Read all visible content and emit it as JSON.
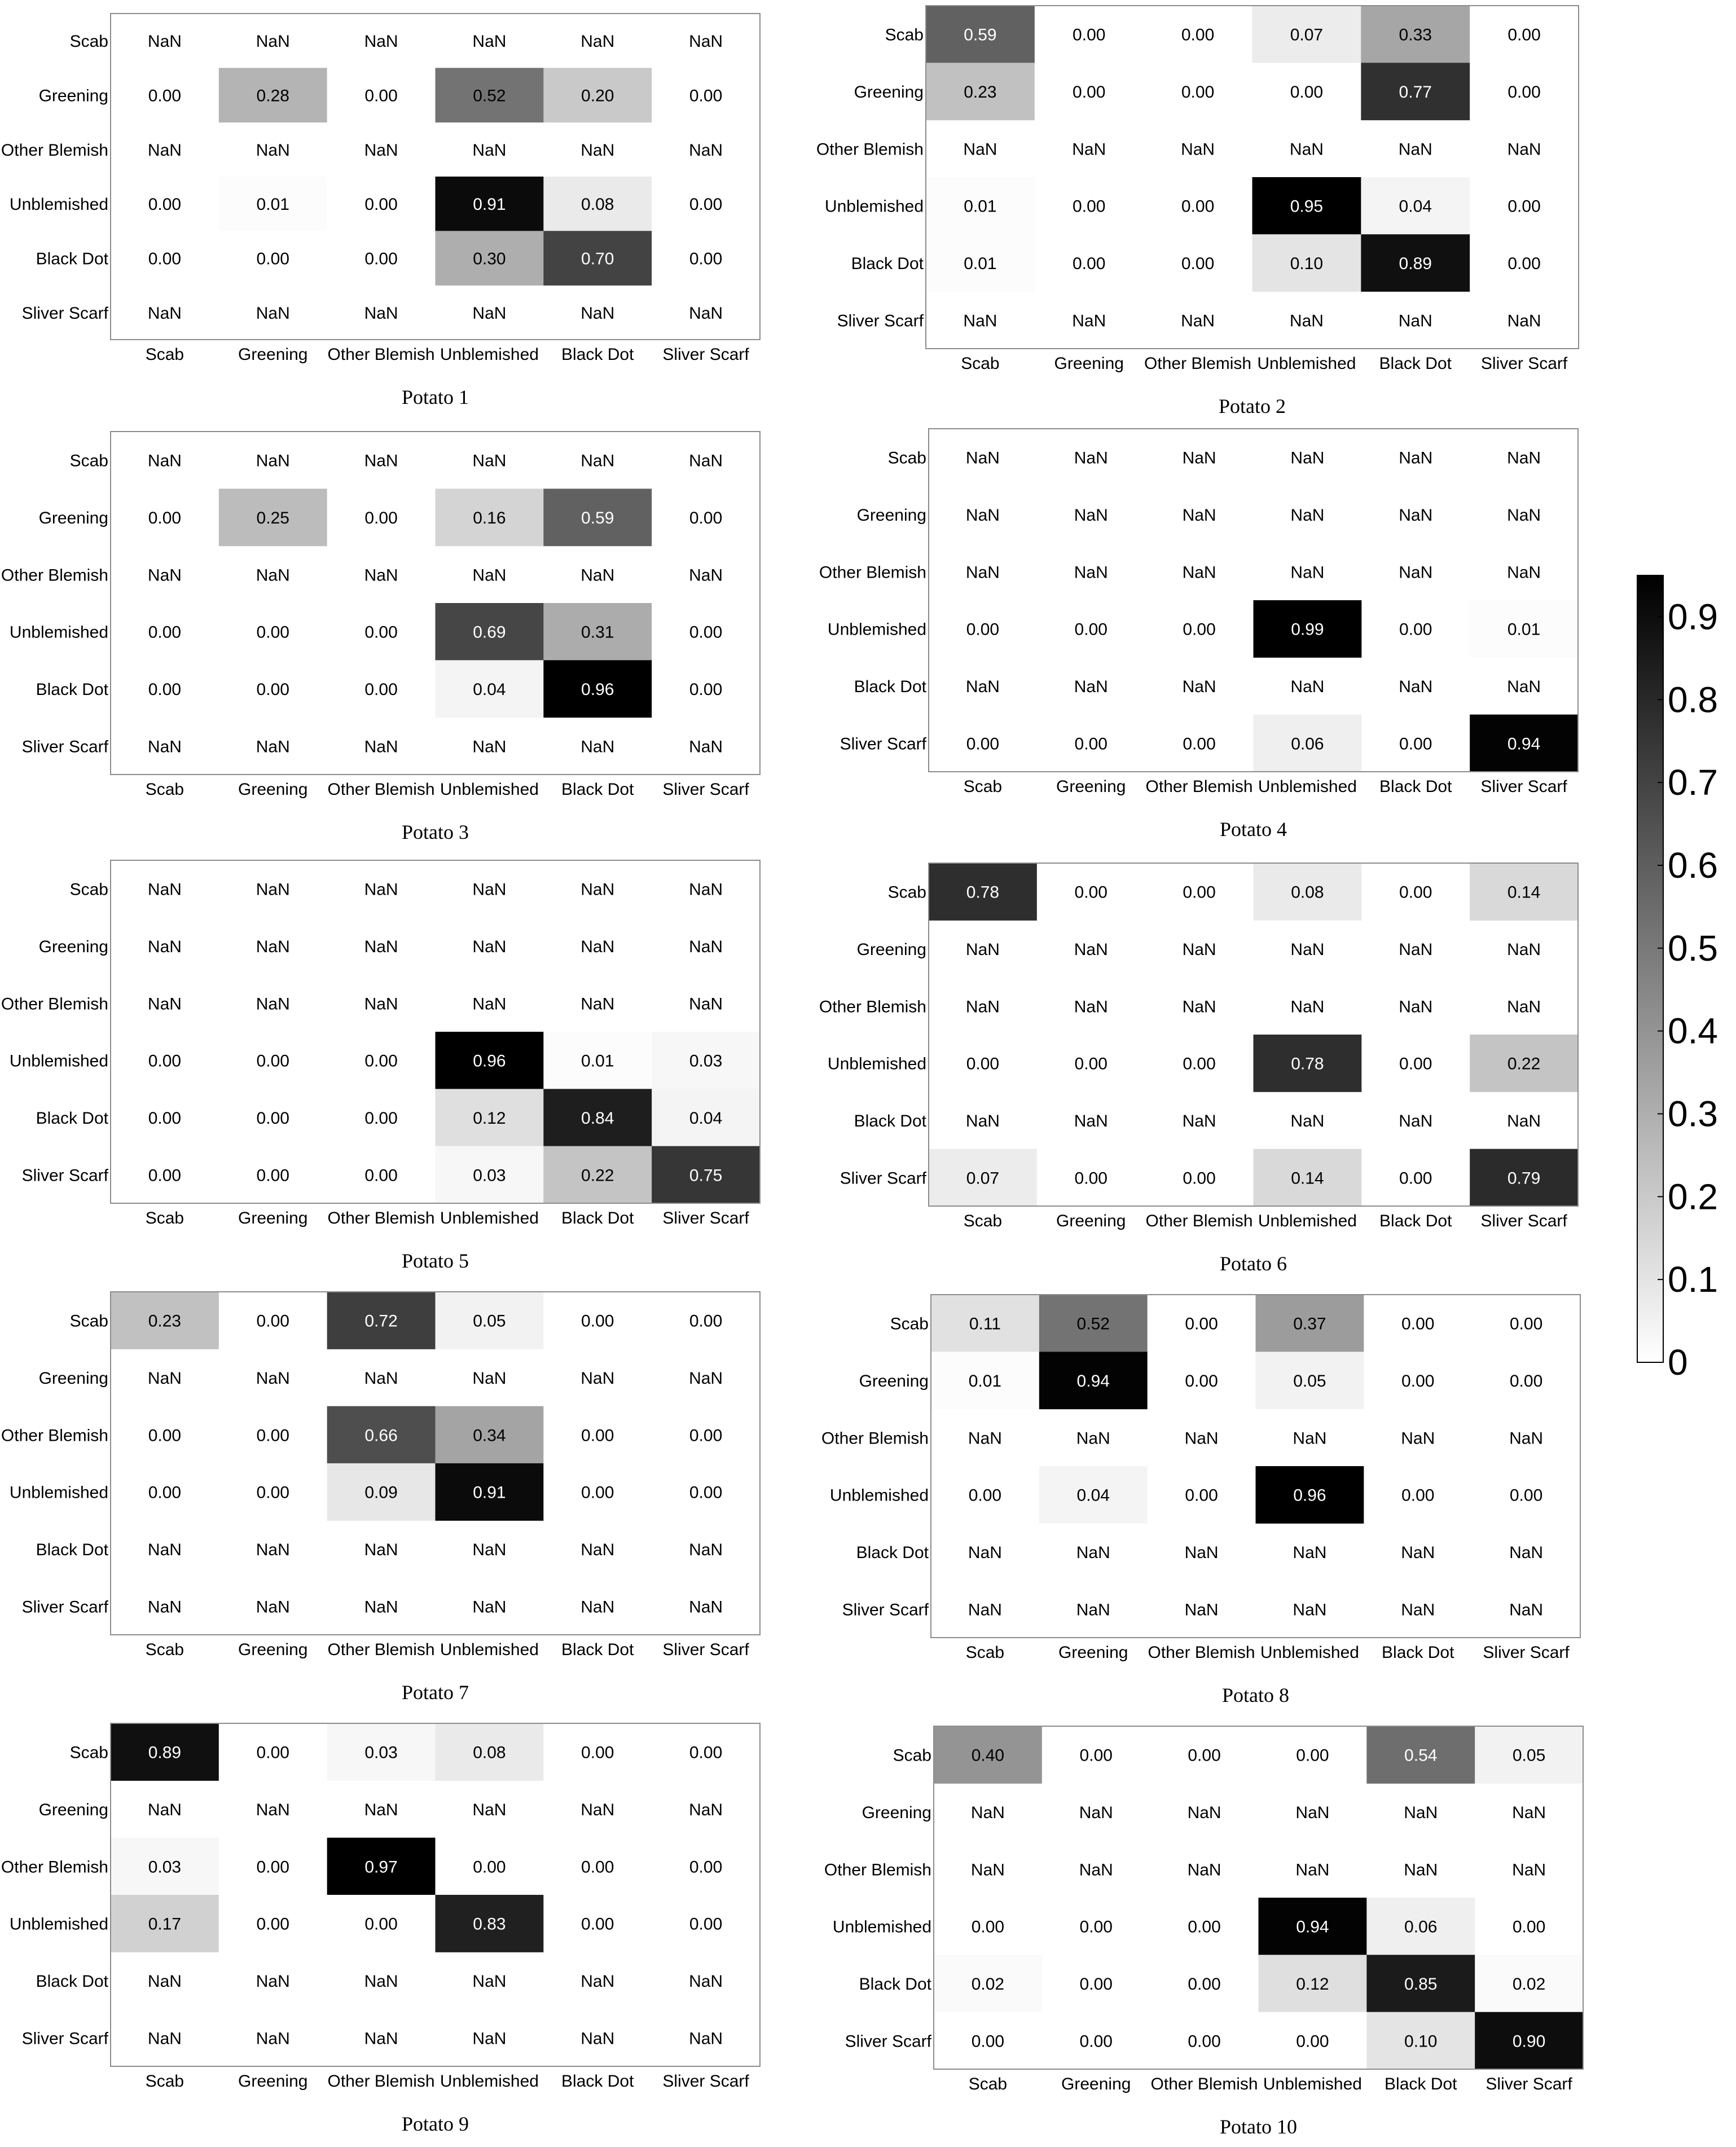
{
  "categories": [
    "Scab",
    "Greening",
    "Other Blemish",
    "Unblemished",
    "Black Dot",
    "Sliver Scarf"
  ],
  "chart_data": [
    {
      "type": "heatmap",
      "title": "Potato 1",
      "rows": [
        "Scab",
        "Greening",
        "Other Blemish",
        "Unblemished",
        "Black Dot",
        "Sliver Scarf"
      ],
      "columns": [
        "Scab",
        "Greening",
        "Other Blemish",
        "Unblemished",
        "Black Dot",
        "Sliver Scarf"
      ],
      "values": [
        [
          null,
          null,
          null,
          null,
          null,
          null
        ],
        [
          0.0,
          0.28,
          0.0,
          0.52,
          0.2,
          0.0
        ],
        [
          null,
          null,
          null,
          null,
          null,
          null
        ],
        [
          0.0,
          0.01,
          0.0,
          0.91,
          0.08,
          0.0
        ],
        [
          0.0,
          0.0,
          0.0,
          0.3,
          0.7,
          0.0
        ],
        [
          null,
          null,
          null,
          null,
          null,
          null
        ]
      ]
    },
    {
      "type": "heatmap",
      "title": "Potato 2",
      "rows": [
        "Scab",
        "Greening",
        "Other Blemish",
        "Unblemished",
        "Black Dot",
        "Sliver Scarf"
      ],
      "columns": [
        "Scab",
        "Greening",
        "Other Blemish",
        "Unblemished",
        "Black Dot",
        "Sliver Scarf"
      ],
      "values": [
        [
          0.59,
          0.0,
          0.0,
          0.07,
          0.33,
          0.0
        ],
        [
          0.23,
          0.0,
          0.0,
          0.0,
          0.77,
          0.0
        ],
        [
          null,
          null,
          null,
          null,
          null,
          null
        ],
        [
          0.01,
          0.0,
          0.0,
          0.95,
          0.04,
          0.0
        ],
        [
          0.01,
          0.0,
          0.0,
          0.1,
          0.89,
          0.0
        ],
        [
          null,
          null,
          null,
          null,
          null,
          null
        ]
      ]
    },
    {
      "type": "heatmap",
      "title": "Potato 3",
      "rows": [
        "Scab",
        "Greening",
        "Other Blemish",
        "Unblemished",
        "Black Dot",
        "Sliver Scarf"
      ],
      "columns": [
        "Scab",
        "Greening",
        "Other Blemish",
        "Unblemished",
        "Black Dot",
        "Sliver Scarf"
      ],
      "values": [
        [
          null,
          null,
          null,
          null,
          null,
          null
        ],
        [
          0.0,
          0.25,
          0.0,
          0.16,
          0.59,
          0.0
        ],
        [
          null,
          null,
          null,
          null,
          null,
          null
        ],
        [
          0.0,
          0.0,
          0.0,
          0.69,
          0.31,
          0.0
        ],
        [
          0.0,
          0.0,
          0.0,
          0.04,
          0.96,
          0.0
        ],
        [
          null,
          null,
          null,
          null,
          null,
          null
        ]
      ]
    },
    {
      "type": "heatmap",
      "title": "Potato 4",
      "rows": [
        "Scab",
        "Greening",
        "Other Blemish",
        "Unblemished",
        "Black Dot",
        "Sliver Scarf"
      ],
      "columns": [
        "Scab",
        "Greening",
        "Other Blemish",
        "Unblemished",
        "Black Dot",
        "Sliver Scarf"
      ],
      "values": [
        [
          null,
          null,
          null,
          null,
          null,
          null
        ],
        [
          null,
          null,
          null,
          null,
          null,
          null
        ],
        [
          null,
          null,
          null,
          null,
          null,
          null
        ],
        [
          0.0,
          0.0,
          0.0,
          0.99,
          0.0,
          0.01
        ],
        [
          null,
          null,
          null,
          null,
          null,
          null
        ],
        [
          0.0,
          0.0,
          0.0,
          0.06,
          0.0,
          0.94
        ]
      ]
    },
    {
      "type": "heatmap",
      "title": "Potato 5",
      "rows": [
        "Scab",
        "Greening",
        "Other Blemish",
        "Unblemished",
        "Black Dot",
        "Sliver Scarf"
      ],
      "columns": [
        "Scab",
        "Greening",
        "Other Blemish",
        "Unblemished",
        "Black Dot",
        "Sliver Scarf"
      ],
      "values": [
        [
          null,
          null,
          null,
          null,
          null,
          null
        ],
        [
          null,
          null,
          null,
          null,
          null,
          null
        ],
        [
          null,
          null,
          null,
          null,
          null,
          null
        ],
        [
          0.0,
          0.0,
          0.0,
          0.96,
          0.01,
          0.03
        ],
        [
          0.0,
          0.0,
          0.0,
          0.12,
          0.84,
          0.04
        ],
        [
          0.0,
          0.0,
          0.0,
          0.03,
          0.22,
          0.75
        ]
      ]
    },
    {
      "type": "heatmap",
      "title": "Potato 6",
      "rows": [
        "Scab",
        "Greening",
        "Other Blemish",
        "Unblemished",
        "Black Dot",
        "Sliver Scarf"
      ],
      "columns": [
        "Scab",
        "Greening",
        "Other Blemish",
        "Unblemished",
        "Black Dot",
        "Sliver Scarf"
      ],
      "values": [
        [
          0.78,
          0.0,
          0.0,
          0.08,
          0.0,
          0.14
        ],
        [
          null,
          null,
          null,
          null,
          null,
          null
        ],
        [
          null,
          null,
          null,
          null,
          null,
          null
        ],
        [
          0.0,
          0.0,
          0.0,
          0.78,
          0.0,
          0.22
        ],
        [
          null,
          null,
          null,
          null,
          null,
          null
        ],
        [
          0.07,
          0.0,
          0.0,
          0.14,
          0.0,
          0.79
        ]
      ]
    },
    {
      "type": "heatmap",
      "title": "Potato 7",
      "rows": [
        "Scab",
        "Greening",
        "Other Blemish",
        "Unblemished",
        "Black Dot",
        "Sliver Scarf"
      ],
      "columns": [
        "Scab",
        "Greening",
        "Other Blemish",
        "Unblemished",
        "Black Dot",
        "Sliver Scarf"
      ],
      "values": [
        [
          0.23,
          0.0,
          0.72,
          0.05,
          0.0,
          0.0
        ],
        [
          null,
          null,
          null,
          null,
          null,
          null
        ],
        [
          0.0,
          0.0,
          0.66,
          0.34,
          0.0,
          0.0
        ],
        [
          0.0,
          0.0,
          0.09,
          0.91,
          0.0,
          0.0
        ],
        [
          null,
          null,
          null,
          null,
          null,
          null
        ],
        [
          null,
          null,
          null,
          null,
          null,
          null
        ]
      ]
    },
    {
      "type": "heatmap",
      "title": "Potato 8",
      "rows": [
        "Scab",
        "Greening",
        "Other Blemish",
        "Unblemished",
        "Black Dot",
        "Sliver Scarf"
      ],
      "columns": [
        "Scab",
        "Greening",
        "Other Blemish",
        "Unblemished",
        "Black Dot",
        "Sliver Scarf"
      ],
      "values": [
        [
          0.11,
          0.52,
          0.0,
          0.37,
          0.0,
          0.0
        ],
        [
          0.01,
          0.94,
          0.0,
          0.05,
          0.0,
          0.0
        ],
        [
          null,
          null,
          null,
          null,
          null,
          null
        ],
        [
          0.0,
          0.04,
          0.0,
          0.96,
          0.0,
          0.0
        ],
        [
          null,
          null,
          null,
          null,
          null,
          null
        ],
        [
          null,
          null,
          null,
          null,
          null,
          null
        ]
      ]
    },
    {
      "type": "heatmap",
      "title": "Potato 9",
      "rows": [
        "Scab",
        "Greening",
        "Other Blemish",
        "Unblemished",
        "Black Dot",
        "Sliver Scarf"
      ],
      "columns": [
        "Scab",
        "Greening",
        "Other Blemish",
        "Unblemished",
        "Black Dot",
        "Sliver Scarf"
      ],
      "values": [
        [
          0.89,
          0.0,
          0.03,
          0.08,
          0.0,
          0.0
        ],
        [
          null,
          null,
          null,
          null,
          null,
          null
        ],
        [
          0.03,
          0.0,
          0.97,
          0.0,
          0.0,
          0.0
        ],
        [
          0.17,
          0.0,
          0.0,
          0.83,
          0.0,
          0.0
        ],
        [
          null,
          null,
          null,
          null,
          null,
          null
        ],
        [
          null,
          null,
          null,
          null,
          null,
          null
        ]
      ]
    },
    {
      "type": "heatmap",
      "title": "Potato 10",
      "rows": [
        "Scab",
        "Greening",
        "Other Blemish",
        "Unblemished",
        "Black Dot",
        "Sliver Scarf"
      ],
      "columns": [
        "Scab",
        "Greening",
        "Other Blemish",
        "Unblemished",
        "Black Dot",
        "Sliver Scarf"
      ],
      "values": [
        [
          0.4,
          0.0,
          0.0,
          0.0,
          0.54,
          0.05
        ],
        [
          null,
          null,
          null,
          null,
          null,
          null
        ],
        [
          null,
          null,
          null,
          null,
          null,
          null
        ],
        [
          0.0,
          0.0,
          0.0,
          0.94,
          0.06,
          0.0
        ],
        [
          0.02,
          0.0,
          0.0,
          0.12,
          0.85,
          0.02
        ],
        [
          0.0,
          0.0,
          0.0,
          0.0,
          0.1,
          0.9
        ]
      ]
    }
  ],
  "missing_label": "NaN",
  "colorbar": {
    "range": [
      0,
      0.95
    ],
    "ticks": [
      "0",
      "0.1",
      "0.2",
      "0.3",
      "0.4",
      "0.5",
      "0.6",
      "0.7",
      "0.8",
      "0.9"
    ],
    "colors": {
      "low": "#ffffff",
      "high": "#000000"
    }
  }
}
